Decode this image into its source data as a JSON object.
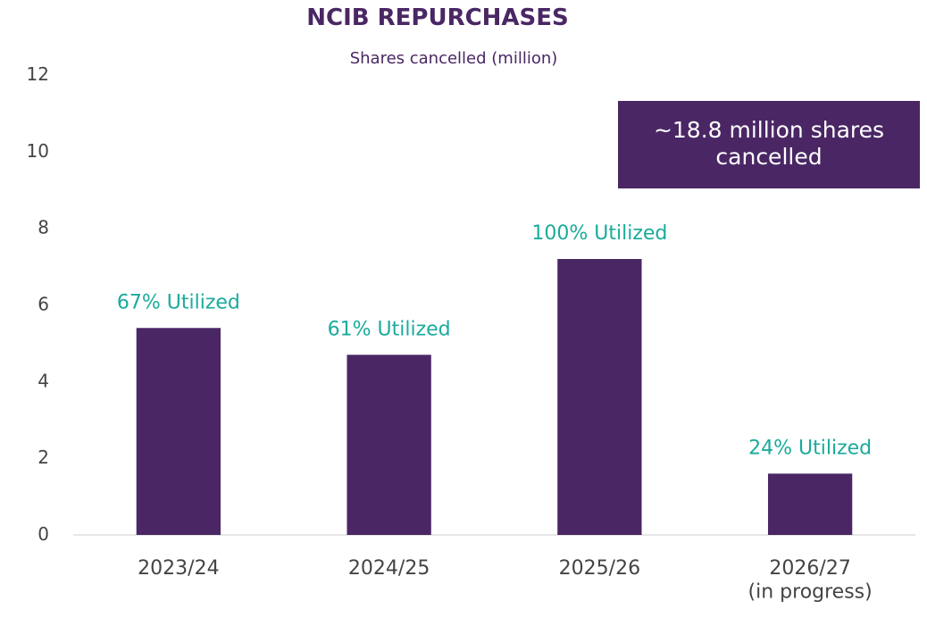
{
  "chart_data": {
    "type": "bar",
    "title": "NCIB REPURCHASES",
    "subtitle": "Shares cancelled (million)",
    "categories": [
      "2023/24",
      "2024/25",
      "2025/26",
      "2026/27\n(in progress)"
    ],
    "values": [
      5.4,
      4.7,
      7.2,
      1.6
    ],
    "annotations": [
      "67% Utilized",
      "61% Utilized",
      "100% Utilized",
      "24% Utilized"
    ],
    "callout": "~18.8 million shares\ncancelled",
    "color": "#4a2764",
    "annotation_color": "#1aab9b",
    "ylim": [
      0,
      12
    ],
    "yticks": [
      0,
      2,
      4,
      6,
      8,
      10,
      12
    ],
    "grid": false
  }
}
